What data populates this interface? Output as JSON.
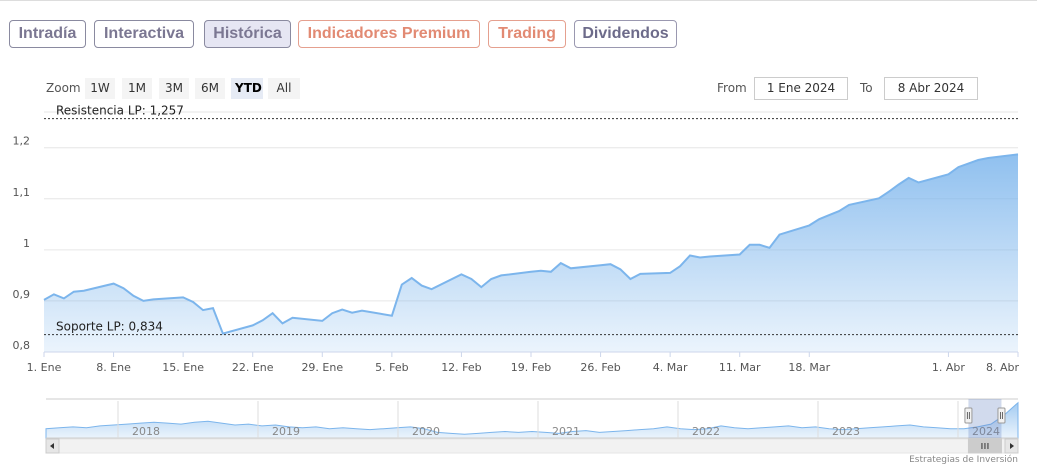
{
  "tabs": [
    {
      "label": "Intradía",
      "style": "gray"
    },
    {
      "label": "Interactiva",
      "style": "gray"
    },
    {
      "label": "Histórica",
      "style": "active"
    },
    {
      "label": "Indicadores Premium",
      "style": "salmon"
    },
    {
      "label": "Trading",
      "style": "salmon"
    },
    {
      "label": "Dividendos",
      "style": "teal"
    }
  ],
  "range_selector": {
    "zoom_label": "Zoom",
    "buttons": [
      "1W",
      "1M",
      "3M",
      "6M",
      "YTD",
      "All"
    ],
    "selected": "YTD",
    "from_label": "From",
    "from_value": "1 Ene 2024",
    "to_label": "To",
    "to_value": "8 Abr 2024"
  },
  "credits": "Estrategias de Inversión",
  "colors": {
    "line": "#7cb5ec",
    "fill_top": "#7cb5ec",
    "fill_bottom": "#ffffff",
    "tab_salmon": "#e28a73",
    "tab_gray": "#7b7792"
  },
  "chart_data": {
    "type": "area",
    "x": [
      "2024-01-01",
      "2024-01-02",
      "2024-01-03",
      "2024-01-04",
      "2024-01-05",
      "2024-01-08",
      "2024-01-09",
      "2024-01-10",
      "2024-01-11",
      "2024-01-12",
      "2024-01-15",
      "2024-01-16",
      "2024-01-17",
      "2024-01-18",
      "2024-01-19",
      "2024-01-22",
      "2024-01-23",
      "2024-01-24",
      "2024-01-25",
      "2024-01-26",
      "2024-01-29",
      "2024-01-30",
      "2024-01-31",
      "2024-02-01",
      "2024-02-02",
      "2024-02-05",
      "2024-02-06",
      "2024-02-07",
      "2024-02-08",
      "2024-02-09",
      "2024-02-12",
      "2024-02-13",
      "2024-02-14",
      "2024-02-15",
      "2024-02-16",
      "2024-02-19",
      "2024-02-20",
      "2024-02-21",
      "2024-02-22",
      "2024-02-23",
      "2024-02-26",
      "2024-02-27",
      "2024-02-28",
      "2024-02-29",
      "2024-03-01",
      "2024-03-04",
      "2024-03-05",
      "2024-03-06",
      "2024-03-07",
      "2024-03-08",
      "2024-03-11",
      "2024-03-12",
      "2024-03-13",
      "2024-03-14",
      "2024-03-15",
      "2024-03-18",
      "2024-03-19",
      "2024-03-20",
      "2024-03-21",
      "2024-03-22",
      "2024-03-25",
      "2024-03-26",
      "2024-03-27",
      "2024-03-28",
      "2024-03-29",
      "2024-04-01",
      "2024-04-02",
      "2024-04-03",
      "2024-04-04",
      "2024-04-05",
      "2024-04-08"
    ],
    "series": [
      {
        "values": [
          0.902,
          0.913,
          0.905,
          0.918,
          0.92,
          0.934,
          0.925,
          0.91,
          0.9,
          0.903,
          0.907,
          0.898,
          0.882,
          0.886,
          0.836,
          0.852,
          0.862,
          0.876,
          0.856,
          0.867,
          0.861,
          0.876,
          0.883,
          0.877,
          0.881,
          0.871,
          0.932,
          0.945,
          0.93,
          0.923,
          0.952,
          0.943,
          0.927,
          0.943,
          0.95,
          0.957,
          0.959,
          0.957,
          0.974,
          0.964,
          0.97,
          0.972,
          0.962,
          0.943,
          0.953,
          0.955,
          0.968,
          0.989,
          0.985,
          0.987,
          0.991,
          1.01,
          1.01,
          1.004,
          1.03,
          1.048,
          1.06,
          1.068,
          1.076,
          1.088,
          1.101,
          1.114,
          1.128,
          1.141,
          1.132,
          1.148,
          1.162,
          1.169,
          1.176,
          1.18,
          1.187
        ]
      }
    ],
    "ylim": [
      0.8,
      1.27
    ],
    "y_ticks": [
      "0,8",
      "0,9",
      "1",
      "1,1",
      "1,2"
    ],
    "y_tick_values": [
      0.8,
      0.9,
      1.0,
      1.1,
      1.2
    ],
    "x_tick_labels": [
      {
        "label": "1. Ene",
        "date": "2024-01-01"
      },
      {
        "label": "8. Ene",
        "date": "2024-01-08"
      },
      {
        "label": "15. Ene",
        "date": "2024-01-15"
      },
      {
        "label": "22. Ene",
        "date": "2024-01-22"
      },
      {
        "label": "29. Ene",
        "date": "2024-01-29"
      },
      {
        "label": "5. Feb",
        "date": "2024-02-05"
      },
      {
        "label": "12. Feb",
        "date": "2024-02-12"
      },
      {
        "label": "19. Feb",
        "date": "2024-02-19"
      },
      {
        "label": "26. Feb",
        "date": "2024-02-26"
      },
      {
        "label": "4. Mar",
        "date": "2024-03-04"
      },
      {
        "label": "11. Mar",
        "date": "2024-03-11"
      },
      {
        "label": "18. Mar",
        "date": "2024-03-18"
      },
      {
        "label": "1. Abr",
        "date": "2024-04-01"
      },
      {
        "label": "8. Abr",
        "date": "2024-04-08"
      }
    ],
    "plot_lines": [
      {
        "label": "Resistencia LP: 1,257",
        "value": 1.257
      },
      {
        "label": "Soporte LP: 0,834",
        "value": 0.834
      }
    ],
    "grid": true
  },
  "navigator": {
    "years": [
      "2018",
      "2019",
      "2020",
      "2021",
      "2022",
      "2023",
      "2024"
    ],
    "values": [
      0.9,
      0.91,
      0.92,
      0.91,
      0.93,
      0.94,
      0.95,
      0.96,
      0.97,
      0.96,
      0.95,
      0.97,
      0.98,
      0.96,
      0.94,
      0.95,
      0.93,
      0.94,
      0.92,
      0.91,
      0.92,
      0.9,
      0.91,
      0.9,
      0.89,
      0.9,
      0.91,
      0.92,
      0.9,
      0.86,
      0.85,
      0.84,
      0.85,
      0.86,
      0.87,
      0.86,
      0.87,
      0.86,
      0.85,
      0.87,
      0.88,
      0.86,
      0.87,
      0.88,
      0.89,
      0.9,
      0.92,
      0.9,
      0.89,
      0.9,
      0.93,
      0.91,
      0.9,
      0.91,
      0.92,
      0.93,
      0.91,
      0.92,
      0.9,
      0.89,
      0.9,
      0.91,
      0.92,
      0.93,
      0.94,
      0.92,
      0.91,
      0.9,
      0.9,
      0.92,
      0.95,
      1.05,
      1.18
    ],
    "selection_start_fraction": 0.949,
    "selection_end_fraction": 0.983
  }
}
